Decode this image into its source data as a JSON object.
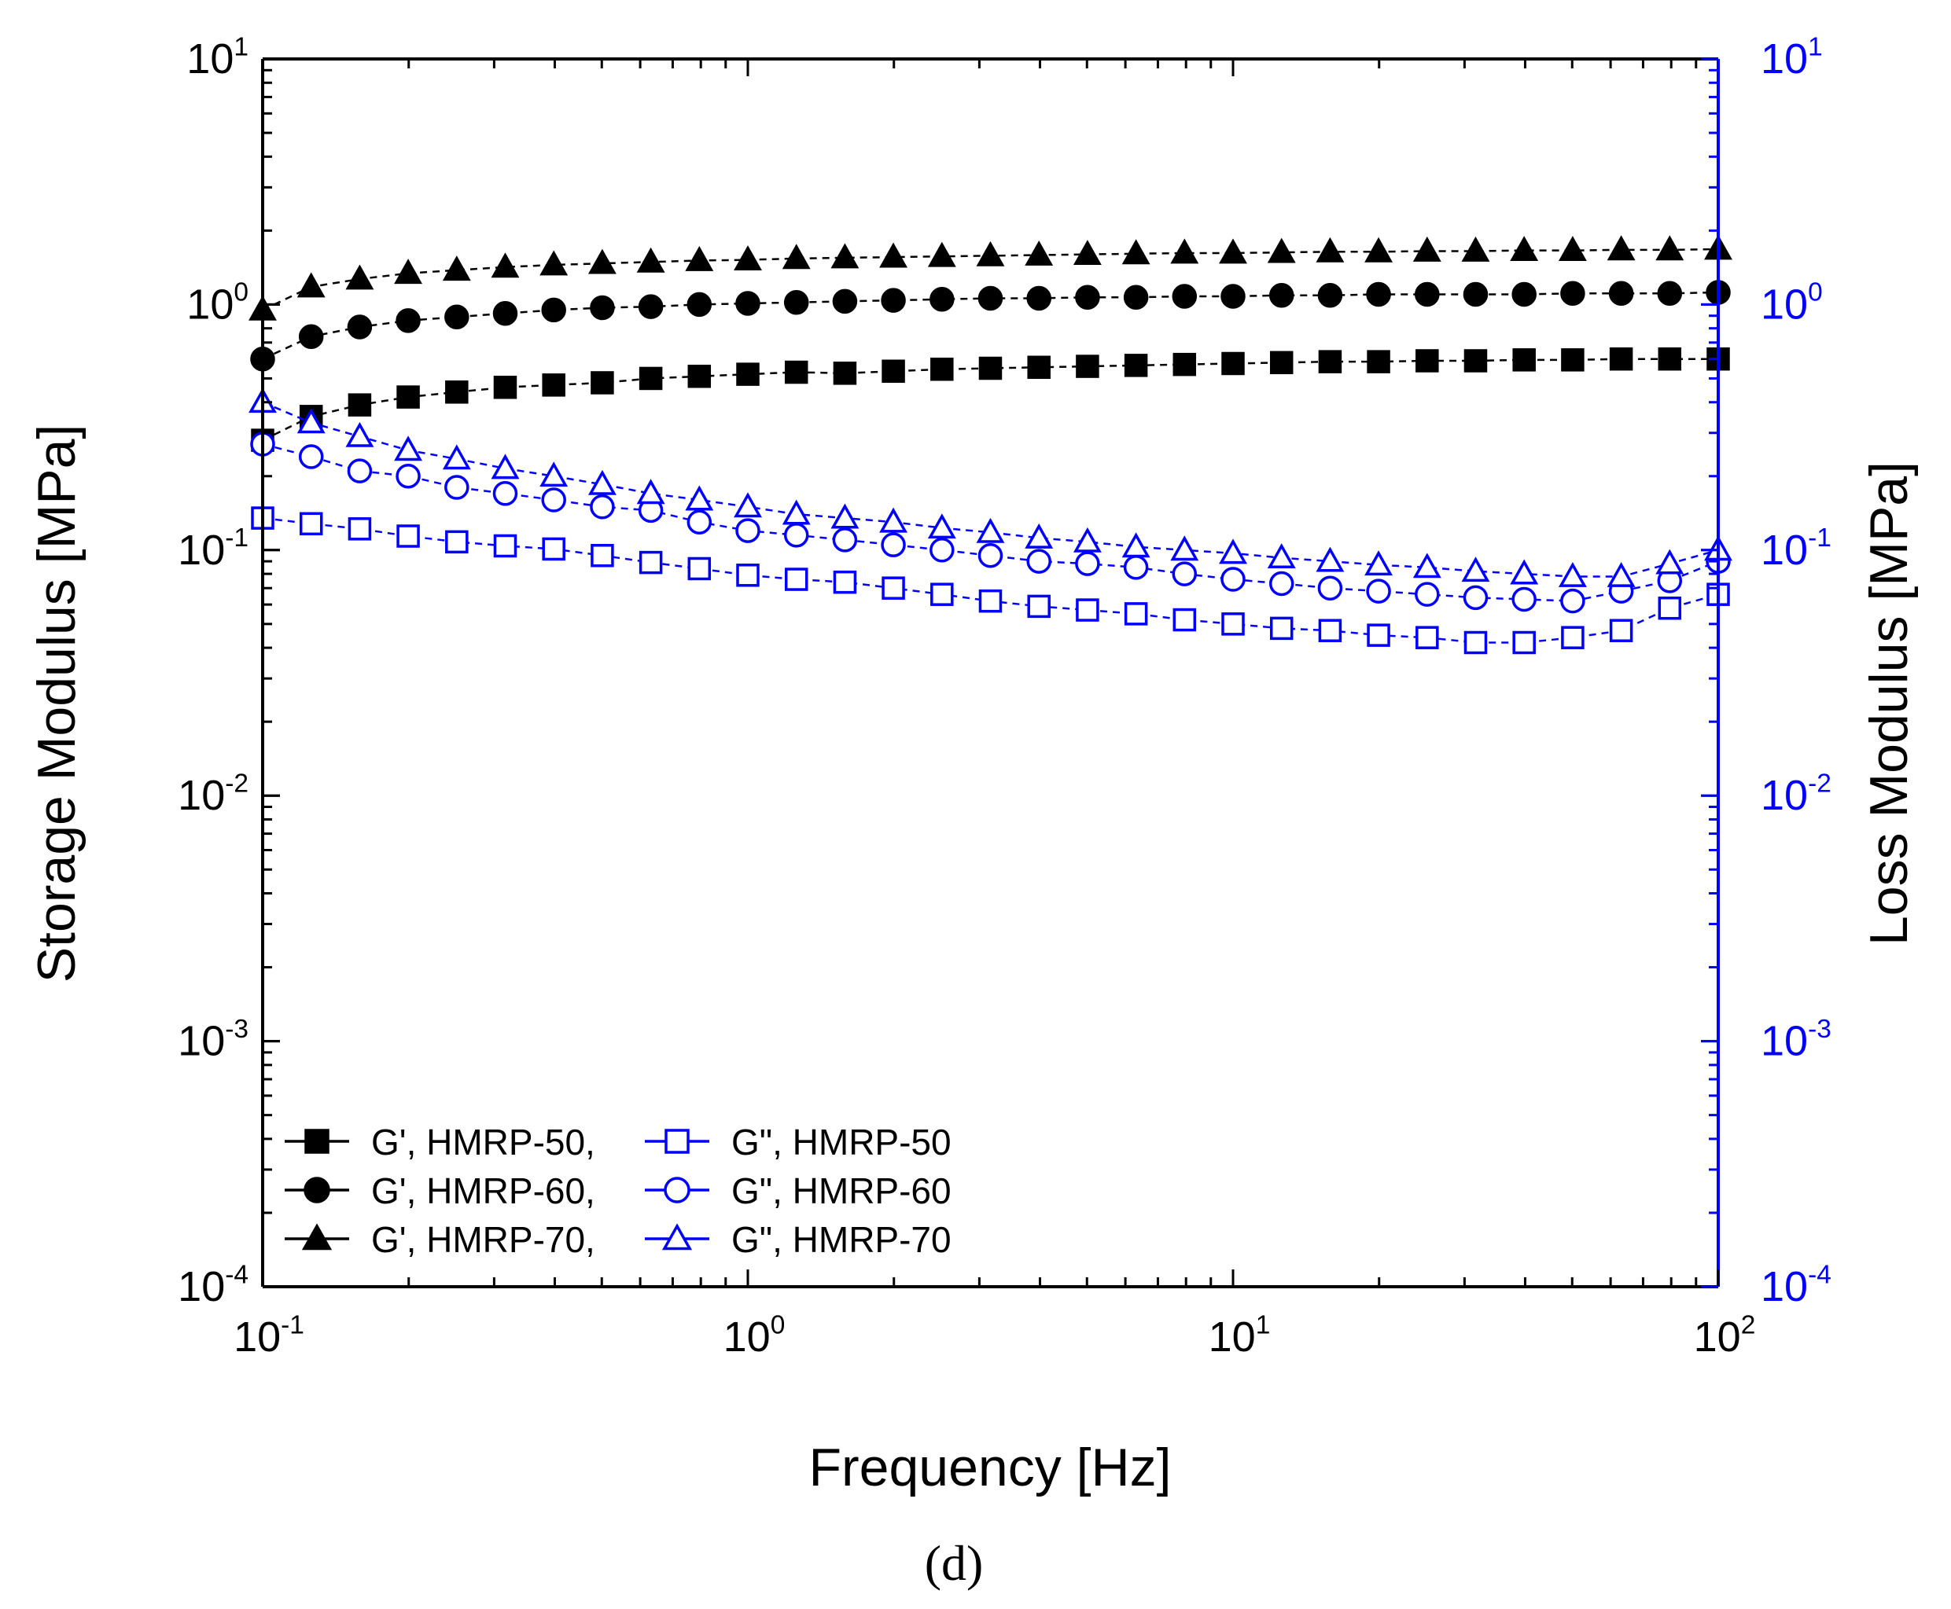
{
  "chart_data": {
    "type": "scatter",
    "x_scale": "log",
    "y_scale": "log",
    "xlim": [
      0.1,
      100
    ],
    "ylim": [
      0.0001,
      10
    ],
    "y2lim": [
      0.0001,
      10
    ],
    "xlabel": "Frequency [Hz]",
    "ylabel": "Storage Modulus [MPa]",
    "y2label": "Loss Modulus [MPa]",
    "panel_label": "(d)",
    "x_ticks": [
      {
        "base": "10",
        "exp": "-1"
      },
      {
        "base": "10",
        "exp": "0"
      },
      {
        "base": "10",
        "exp": "1"
      },
      {
        "base": "10",
        "exp": "2"
      }
    ],
    "y_ticks": [
      {
        "base": "10",
        "exp": "-4"
      },
      {
        "base": "10",
        "exp": "-3"
      },
      {
        "base": "10",
        "exp": "-2"
      },
      {
        "base": "10",
        "exp": "-1"
      },
      {
        "base": "10",
        "exp": "0"
      },
      {
        "base": "10",
        "exp": "1"
      }
    ],
    "y2_ticks": [
      {
        "base": "10",
        "exp": "-4"
      },
      {
        "base": "10",
        "exp": "-3"
      },
      {
        "base": "10",
        "exp": "-2"
      },
      {
        "base": "10",
        "exp": "-1"
      },
      {
        "base": "10",
        "exp": "0"
      },
      {
        "base": "10",
        "exp": "1"
      }
    ],
    "legend_position": "bottom-left",
    "x": [
      0.1,
      0.1259,
      0.1585,
      0.1995,
      0.2512,
      0.3162,
      0.3981,
      0.5012,
      0.631,
      0.7943,
      1.0,
      1.259,
      1.585,
      1.995,
      2.512,
      3.162,
      3.981,
      5.012,
      6.31,
      7.943,
      10.0,
      12.59,
      15.85,
      19.95,
      25.12,
      31.62,
      39.81,
      50.12,
      63.1,
      79.43,
      100.0
    ],
    "series": [
      {
        "name": "G', HMRP-50,",
        "axis": "left",
        "color": "#000000",
        "marker": "square",
        "filled": true,
        "values": [
          0.28,
          0.35,
          0.39,
          0.42,
          0.44,
          0.46,
          0.47,
          0.48,
          0.5,
          0.51,
          0.52,
          0.53,
          0.525,
          0.535,
          0.545,
          0.55,
          0.555,
          0.56,
          0.565,
          0.57,
          0.575,
          0.58,
          0.585,
          0.585,
          0.59,
          0.59,
          0.595,
          0.595,
          0.6,
          0.6,
          0.6
        ]
      },
      {
        "name": "G', HMRP-60,",
        "axis": "left",
        "color": "#000000",
        "marker": "circle",
        "filled": true,
        "values": [
          0.6,
          0.74,
          0.81,
          0.86,
          0.89,
          0.92,
          0.95,
          0.97,
          0.98,
          1.0,
          1.01,
          1.02,
          1.03,
          1.04,
          1.05,
          1.06,
          1.06,
          1.07,
          1.07,
          1.08,
          1.08,
          1.09,
          1.09,
          1.1,
          1.1,
          1.1,
          1.1,
          1.11,
          1.11,
          1.11,
          1.12
        ]
      },
      {
        "name": "G', HMRP-70,",
        "axis": "left",
        "color": "#000000",
        "marker": "triangle",
        "filled": true,
        "values": [
          0.95,
          1.18,
          1.27,
          1.34,
          1.38,
          1.42,
          1.45,
          1.47,
          1.49,
          1.51,
          1.52,
          1.54,
          1.55,
          1.56,
          1.57,
          1.58,
          1.59,
          1.6,
          1.61,
          1.62,
          1.62,
          1.63,
          1.64,
          1.64,
          1.65,
          1.65,
          1.66,
          1.66,
          1.67,
          1.67,
          1.68
        ]
      },
      {
        "name": "G\", HMRP-50",
        "axis": "right",
        "color": "#0000ff",
        "marker": "square",
        "filled": false,
        "values": [
          0.135,
          0.128,
          0.122,
          0.114,
          0.108,
          0.104,
          0.101,
          0.095,
          0.089,
          0.084,
          0.079,
          0.076,
          0.074,
          0.07,
          0.066,
          0.062,
          0.059,
          0.057,
          0.055,
          0.052,
          0.05,
          0.048,
          0.047,
          0.045,
          0.044,
          0.042,
          0.042,
          0.044,
          0.047,
          0.058,
          0.066
        ]
      },
      {
        "name": "G\", HMRP-60",
        "axis": "right",
        "color": "#0000ff",
        "marker": "circle",
        "filled": false,
        "values": [
          0.27,
          0.24,
          0.21,
          0.2,
          0.18,
          0.17,
          0.16,
          0.15,
          0.145,
          0.13,
          0.12,
          0.115,
          0.11,
          0.105,
          0.1,
          0.095,
          0.09,
          0.088,
          0.085,
          0.08,
          0.076,
          0.073,
          0.07,
          0.068,
          0.066,
          0.064,
          0.063,
          0.062,
          0.068,
          0.075,
          0.09
        ]
      },
      {
        "name": "G\", HMRP-70",
        "axis": "right",
        "color": "#0000ff",
        "marker": "triangle",
        "filled": false,
        "values": [
          0.4,
          0.33,
          0.29,
          0.255,
          0.235,
          0.215,
          0.2,
          0.185,
          0.17,
          0.16,
          0.15,
          0.14,
          0.135,
          0.13,
          0.123,
          0.118,
          0.112,
          0.108,
          0.103,
          0.1,
          0.097,
          0.093,
          0.09,
          0.087,
          0.085,
          0.082,
          0.08,
          0.078,
          0.078,
          0.088,
          0.1
        ]
      }
    ]
  }
}
